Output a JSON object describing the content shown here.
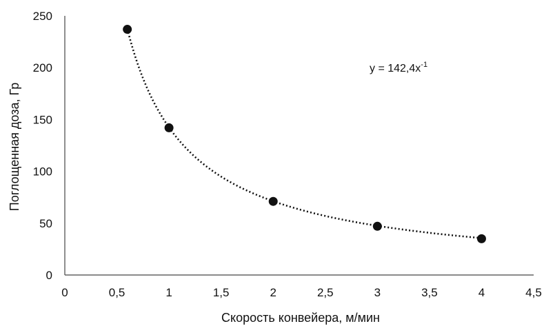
{
  "chart_data": {
    "type": "scatter",
    "title": "",
    "xlabel": "Скорость конвейера, м/мин",
    "ylabel": "Поглощенная доза, Гр",
    "xlim": [
      0,
      4.5
    ],
    "ylim": [
      0,
      250
    ],
    "x_ticks": [
      0,
      0.5,
      1,
      1.5,
      2,
      2.5,
      3,
      3.5,
      4,
      4.5
    ],
    "x_tick_labels": [
      "0",
      "0,5",
      "1",
      "1,5",
      "2",
      "2,5",
      "3",
      "3,5",
      "4",
      "4,5"
    ],
    "y_ticks": [
      0,
      50,
      100,
      150,
      200,
      250
    ],
    "y_tick_labels": [
      "0",
      "50",
      "100",
      "150",
      "200",
      "250"
    ],
    "grid": false,
    "legend": "none",
    "series": [
      {
        "x": [
          0.6,
          1,
          2,
          3,
          4
        ],
        "y": [
          237,
          142,
          71,
          47,
          35
        ],
        "marker_color": "#111111"
      }
    ],
    "trendline": {
      "type": "power",
      "coefficient": 142.4,
      "exponent": -1,
      "equation_base": "y = 142,4x",
      "equation_superscript": "-1",
      "line_style": "dotted",
      "color": "#111111"
    }
  }
}
